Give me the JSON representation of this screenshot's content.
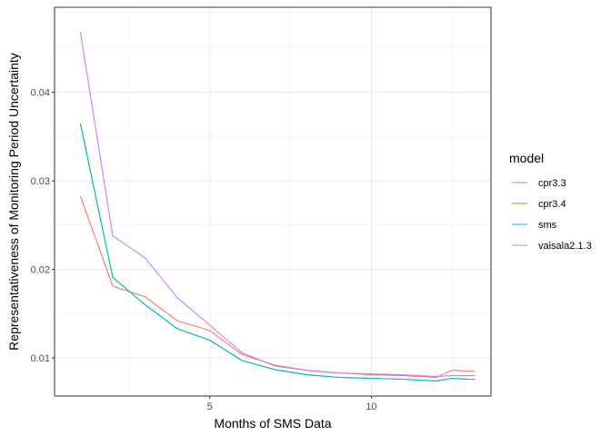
{
  "chart_data": {
    "type": "line",
    "xlabel": "Months of SMS Data",
    "ylabel": "Representativeness of Monitoring Period Uncertainty",
    "xlim": [
      0.2,
      13.7
    ],
    "ylim": [
      0.0057,
      0.0496
    ],
    "x_ticks": [
      5,
      10
    ],
    "x_tick_labels": [
      "5",
      "10"
    ],
    "y_ticks": [
      0.01,
      0.02,
      0.03,
      0.04
    ],
    "y_tick_labels": [
      "0.01",
      "0.02",
      "0.03",
      "0.04"
    ],
    "grid": true,
    "legend": {
      "title": "model",
      "position": "right"
    },
    "series": [
      {
        "name": "cpr3.3",
        "color": "#F8766D",
        "x": [
          1,
          2,
          3,
          4,
          5,
          6,
          7,
          8,
          9,
          10,
          11,
          12,
          12.5,
          13,
          13.2
        ],
        "y": [
          0.0283,
          0.0181,
          0.0169,
          0.0142,
          0.0131,
          0.0104,
          0.0092,
          0.0086,
          0.0083,
          0.0081,
          0.008,
          0.0078,
          0.0086,
          0.0085,
          0.0085
        ]
      },
      {
        "name": "cpr3.4",
        "color": "#7CAE00",
        "x": [
          1,
          2,
          3,
          4,
          5,
          6,
          7,
          8,
          9,
          10,
          11,
          12,
          12.5,
          13,
          13.2
        ],
        "y": [
          0.0365,
          0.0191,
          0.016,
          0.0133,
          0.012,
          0.0097,
          0.0087,
          0.0081,
          0.0078,
          0.0077,
          0.0076,
          0.0074,
          0.0077,
          0.0076,
          0.0076
        ]
      },
      {
        "name": "sms",
        "color": "#00BFC4",
        "x": [
          1,
          2,
          3,
          4,
          5,
          6,
          7,
          8,
          9,
          10,
          11,
          12,
          12.5,
          13,
          13.2
        ],
        "y": [
          0.0365,
          0.0191,
          0.016,
          0.0133,
          0.012,
          0.0097,
          0.0087,
          0.0081,
          0.0078,
          0.0077,
          0.0076,
          0.0074,
          0.0077,
          0.0076,
          0.0076
        ]
      },
      {
        "name": "vaisala2.1.3",
        "color": "#C77CFF",
        "x": [
          1,
          2,
          3,
          4,
          5,
          6,
          7,
          8,
          9,
          10,
          11,
          12,
          12.5,
          13,
          13.2
        ],
        "y": [
          0.0468,
          0.0238,
          0.0213,
          0.0168,
          0.0137,
          0.0106,
          0.0091,
          0.0086,
          0.0083,
          0.0082,
          0.0081,
          0.0079,
          0.008,
          0.008,
          0.008
        ]
      }
    ]
  }
}
